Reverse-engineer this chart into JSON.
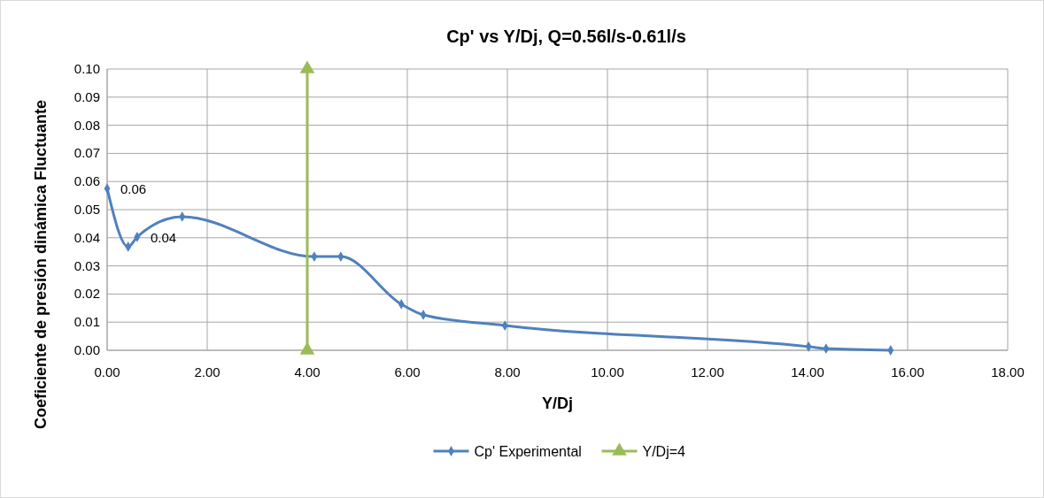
{
  "chart_data": {
    "type": "line",
    "title": "Cp' vs Y/Dj, Q=0.56l/s-0.61l/s",
    "xlabel": "Y/Dj",
    "ylabel": "Coeficiente de presión dinámica Fluctuante",
    "series": [
      {
        "name": "Cp' Experimental",
        "color": "#4f81bd",
        "marker": "diamond",
        "x": [
          0,
          0.42,
          0.6,
          1.5,
          4.14,
          4.67,
          5.88,
          6.32,
          7.95,
          14.02,
          14.37,
          15.66
        ],
        "values": [
          0.0575,
          0.0368,
          0.0403,
          0.0475,
          0.0333,
          0.0333,
          0.0164,
          0.0126,
          0.0088,
          0.0013,
          0.0006,
          0.0
        ],
        "value_labels": [
          "0.06",
          null,
          "0.04",
          null,
          null,
          null,
          null,
          null,
          null,
          null,
          null,
          null
        ]
      },
      {
        "name": "Y/Dj=4",
        "color": "#9bbb59",
        "marker": "triangle",
        "x": [
          4,
          4
        ],
        "values": [
          0,
          0.1
        ]
      }
    ],
    "xlim": [
      0,
      18
    ],
    "xticks": [
      {
        "value": 0,
        "label": "0.00"
      },
      {
        "value": 2,
        "label": "2.00"
      },
      {
        "value": 4,
        "label": "4.00"
      },
      {
        "value": 6,
        "label": "6.00"
      },
      {
        "value": 8,
        "label": "8.00"
      },
      {
        "value": 10,
        "label": "10.00"
      },
      {
        "value": 12,
        "label": "12.00"
      },
      {
        "value": 14,
        "label": "14.00"
      },
      {
        "value": 16,
        "label": "16.00"
      },
      {
        "value": 18,
        "label": "18.00"
      }
    ],
    "ylim": [
      0,
      0.1
    ],
    "yticks": [
      {
        "value": 0,
        "label": "0.00"
      },
      {
        "value": 0.01,
        "label": "0.01"
      },
      {
        "value": 0.02,
        "label": "0.02"
      },
      {
        "value": 0.03,
        "label": "0.03"
      },
      {
        "value": 0.04,
        "label": "0.04"
      },
      {
        "value": 0.05,
        "label": "0.05"
      },
      {
        "value": 0.06,
        "label": "0.06"
      },
      {
        "value": 0.07,
        "label": "0.07"
      },
      {
        "value": 0.08,
        "label": "0.08"
      },
      {
        "value": 0.09,
        "label": "0.09"
      },
      {
        "value": 0.1,
        "label": "0.10"
      }
    ],
    "grid": true,
    "legend": "bottom"
  }
}
